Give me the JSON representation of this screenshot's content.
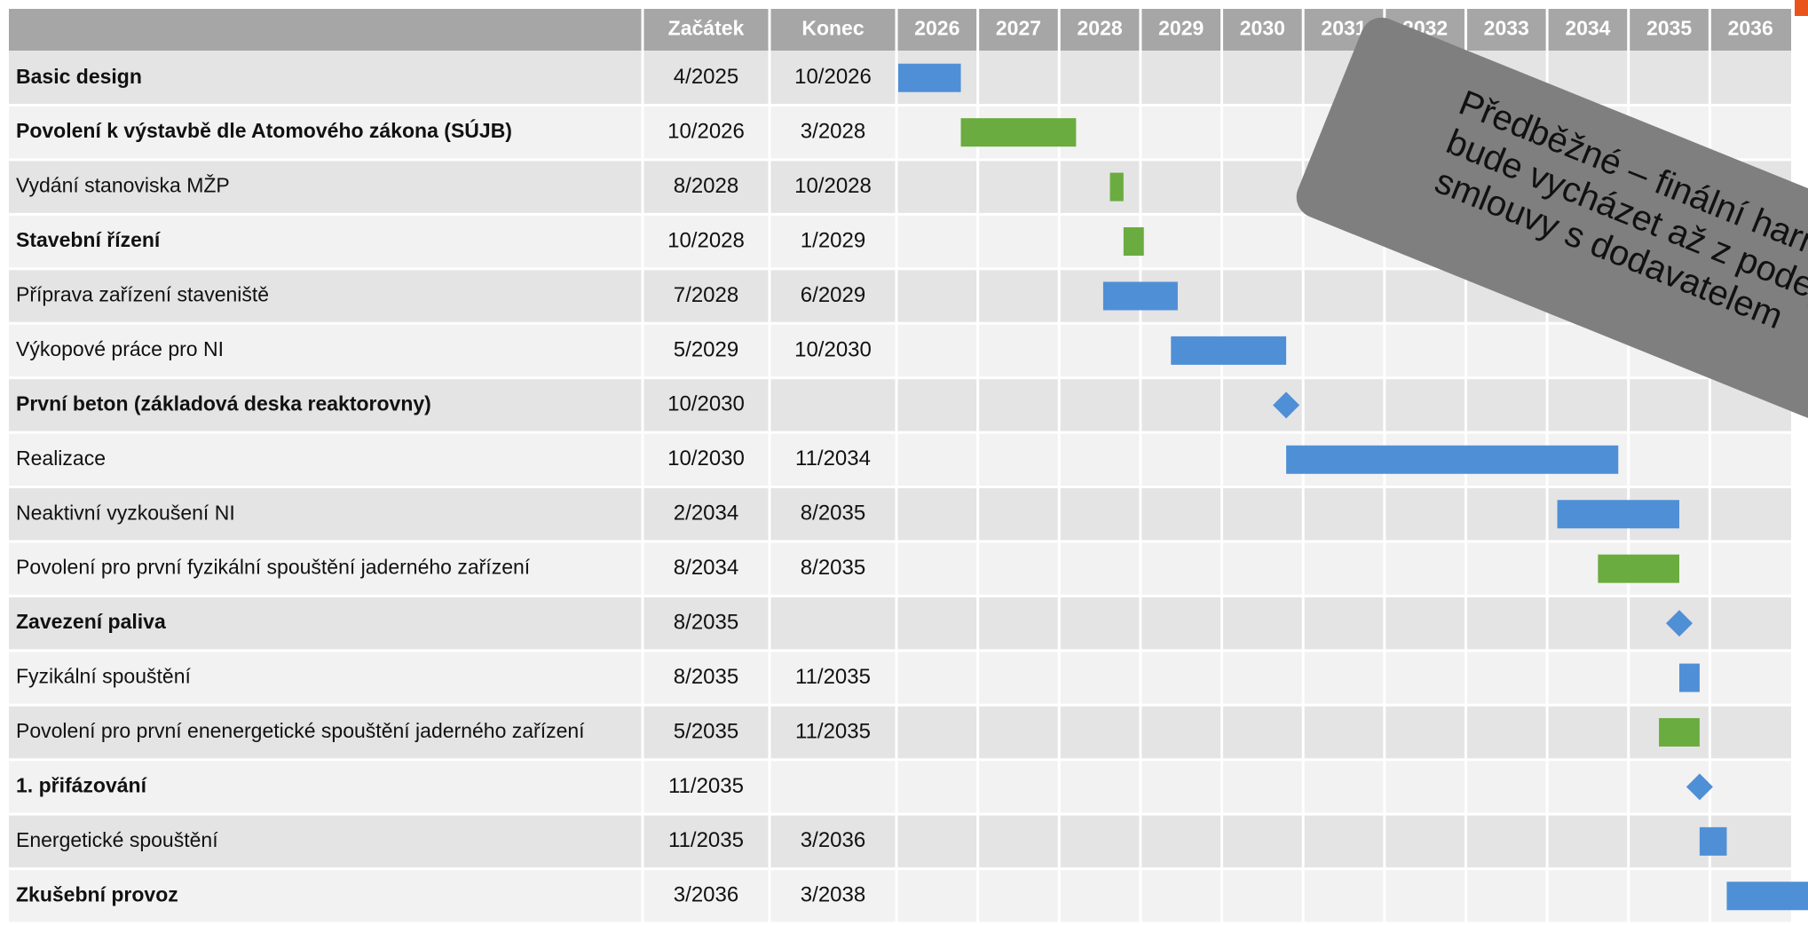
{
  "chart_data": {
    "type": "gantt",
    "columns": [
      "Začátek",
      "Konec"
    ],
    "xlim": [
      2026,
      2037
    ],
    "xticks": [
      2026,
      2027,
      2028,
      2029,
      2030,
      2031,
      2032,
      2033,
      2034,
      2035,
      2036
    ],
    "colors": {
      "blue": "#4f8fd6",
      "green": "#6aac3f"
    },
    "tasks": [
      {
        "name": "Basic design",
        "start": "4/2025",
        "end": "10/2026",
        "color": "blue",
        "bold": true
      },
      {
        "name": "Povolení k výstavbě dle Atomového zákona (SÚJB)",
        "start": "10/2026",
        "end": "3/2028",
        "color": "green",
        "bold": true
      },
      {
        "name": "Vydání stanoviska MŽP",
        "start": "8/2028",
        "end": "10/2028",
        "color": "green",
        "bold": false
      },
      {
        "name": "Stavební řízení",
        "start": "10/2028",
        "end": "1/2029",
        "color": "green",
        "bold": true
      },
      {
        "name": "Příprava zařízení staveniště",
        "start": "7/2028",
        "end": "6/2029",
        "color": "blue",
        "bold": false
      },
      {
        "name": "Výkopové práce pro NI",
        "start": "5/2029",
        "end": "10/2030",
        "color": "blue",
        "bold": false
      },
      {
        "name": "První beton (základová deska reaktorovny)",
        "start": "10/2030",
        "color": "blue",
        "bold": true
      },
      {
        "name": "Realizace",
        "start": "10/2030",
        "end": "11/2034",
        "color": "blue",
        "bold": false
      },
      {
        "name": "Neaktivní vyzkoušení NI",
        "start": "2/2034",
        "end": "8/2035",
        "color": "blue",
        "bold": false
      },
      {
        "name": "Povolení pro první fyzikální spouštění jaderného zařízení",
        "start": "8/2034",
        "end": "8/2035",
        "color": "green",
        "bold": false
      },
      {
        "name": "Zavezení paliva",
        "start": "8/2035",
        "color": "blue",
        "bold": true
      },
      {
        "name": "Fyzikální spouštění",
        "start": "8/2035",
        "end": "11/2035",
        "color": "blue",
        "bold": false
      },
      {
        "name": "Povolení pro první enenergetické spouštění jaderného zařízení",
        "start": "5/2035",
        "end": "11/2035",
        "color": "green",
        "bold": false
      },
      {
        "name": "1. přifázování",
        "start": "11/2035",
        "color": "blue",
        "bold": true
      },
      {
        "name": "Energetické spouštění",
        "start": "11/2035",
        "end": "3/2036",
        "color": "blue",
        "bold": false
      },
      {
        "name": "Zkušební provoz",
        "start": "3/2036",
        "end": "3/2038",
        "color": "blue",
        "bold": true
      }
    ],
    "annotation": [
      "Předběžné – finální harmono",
      "bude vycházet až z podepsa",
      "smlouvy s dodavatelem"
    ]
  }
}
